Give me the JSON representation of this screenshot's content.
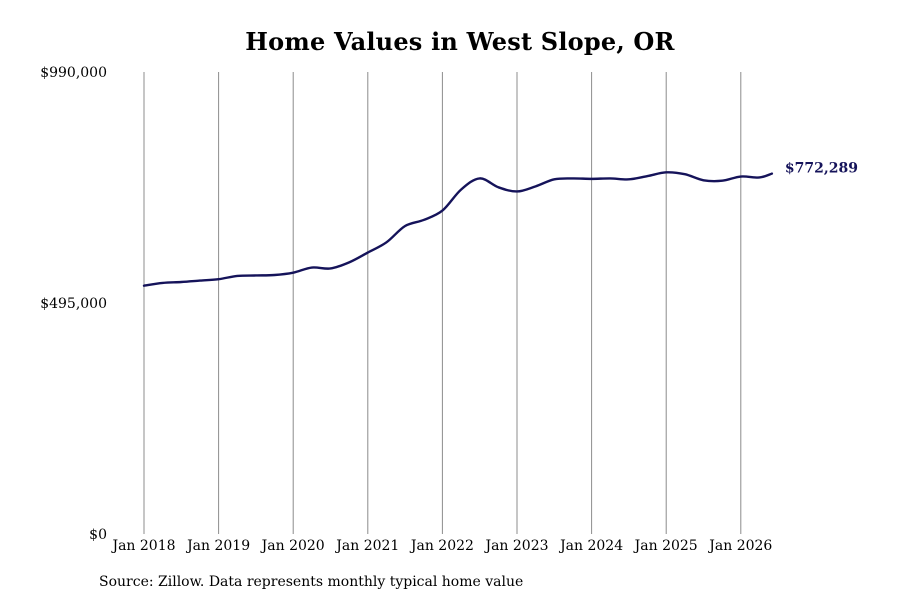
{
  "chart_data": {
    "type": "line",
    "title": "Home Values in West Slope, OR",
    "xlabel": "",
    "ylabel": "",
    "ylim": [
      0,
      990000
    ],
    "y_ticks": [
      {
        "value": 0,
        "label": "$0"
      },
      {
        "value": 495000,
        "label": "$495,000"
      },
      {
        "value": 990000,
        "label": "$990,000"
      }
    ],
    "x_ticks": [
      {
        "value": "2018-01",
        "label": "Jan 2018"
      },
      {
        "value": "2019-01",
        "label": "Jan 2019"
      },
      {
        "value": "2020-01",
        "label": "Jan 2020"
      },
      {
        "value": "2021-01",
        "label": "Jan 2021"
      },
      {
        "value": "2022-01",
        "label": "Jan 2022"
      },
      {
        "value": "2023-01",
        "label": "Jan 2023"
      },
      {
        "value": "2024-01",
        "label": "Jan 2024"
      },
      {
        "value": "2025-01",
        "label": "Jan 2025"
      },
      {
        "value": "2026-01",
        "label": "Jan 2026"
      }
    ],
    "xlim": [
      "2018-01",
      "2026-06"
    ],
    "grid": "vertical",
    "legend": "none",
    "series": [
      {
        "color": "#15135a",
        "x": [
          "2018-01",
          "2018-04",
          "2018-07",
          "2018-10",
          "2019-01",
          "2019-04",
          "2019-07",
          "2019-10",
          "2020-01",
          "2020-04",
          "2020-07",
          "2020-10",
          "2021-01",
          "2021-04",
          "2021-07",
          "2021-10",
          "2022-01",
          "2022-04",
          "2022-07",
          "2022-10",
          "2023-01",
          "2023-04",
          "2023-07",
          "2023-10",
          "2024-01",
          "2024-04",
          "2024-07",
          "2024-10",
          "2025-01",
          "2025-04",
          "2025-07",
          "2025-10",
          "2026-01",
          "2026-04",
          "2026-06"
        ],
        "values": [
          532000,
          538000,
          540000,
          543000,
          546000,
          553000,
          554000,
          555000,
          560000,
          571000,
          569000,
          582000,
          603000,
          625000,
          660000,
          673000,
          693000,
          738000,
          762000,
          743000,
          734000,
          745000,
          760000,
          762000,
          761000,
          762000,
          760000,
          767000,
          775000,
          771000,
          758000,
          757000,
          766000,
          764000,
          772289
        ]
      }
    ],
    "end_label": "$772,289"
  },
  "source_note": "Source: Zillow. Data represents monthly typical home value"
}
